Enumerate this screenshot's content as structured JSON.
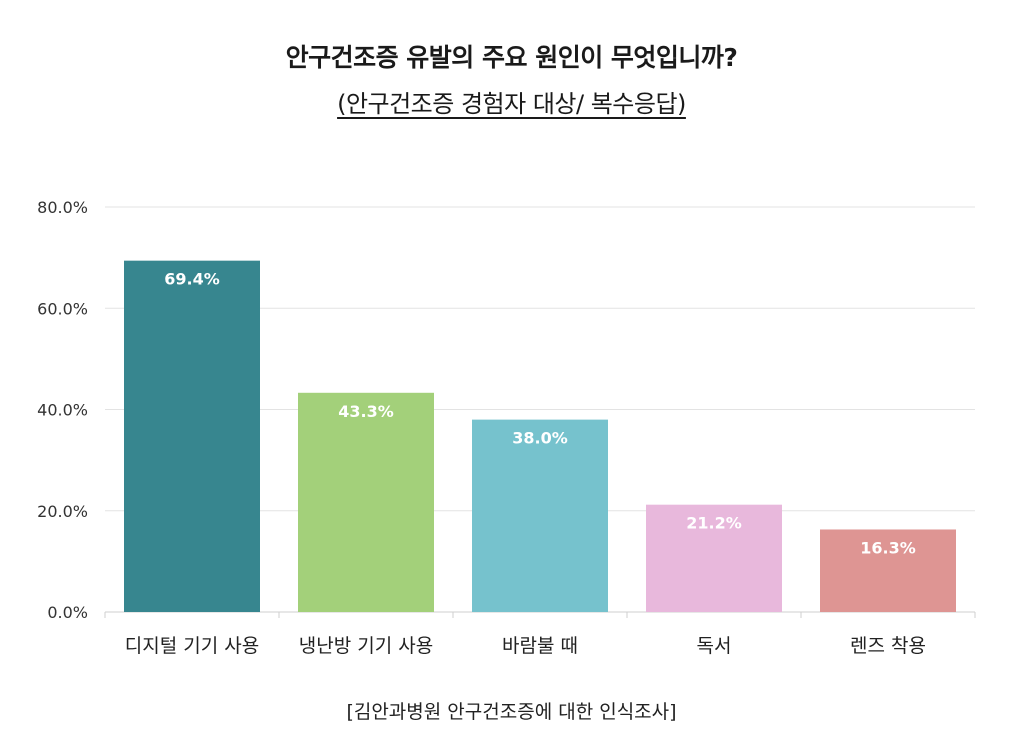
{
  "title": "안구건조증 유발의 주요 원인이 무엇입니까?",
  "subtitle": "(안구건조증 경험자 대상/ 복수응답)",
  "source": "[김안과병원 안구건조증에 대한 인식조사]",
  "chart_data": {
    "type": "bar",
    "categories": [
      "디지털 기기 사용",
      "냉난방 기기 사용",
      "바람불 때",
      "독서",
      "렌즈 착용"
    ],
    "values": [
      69.4,
      43.3,
      38.0,
      21.2,
      16.3
    ],
    "value_labels": [
      "69.4%",
      "43.3%",
      "38.0%",
      "21.2%",
      "16.3%"
    ],
    "colors": [
      "#37868f",
      "#a3d07a",
      "#76c2cd",
      "#e8b8dc",
      "#de9593"
    ],
    "ylim": [
      0,
      80
    ],
    "yticks": [
      0,
      20,
      40,
      60,
      80
    ],
    "ytick_labels": [
      "0.0%",
      "20.0%",
      "40.0%",
      "60.0%",
      "80.0%"
    ],
    "grid": true,
    "legend": "none"
  }
}
